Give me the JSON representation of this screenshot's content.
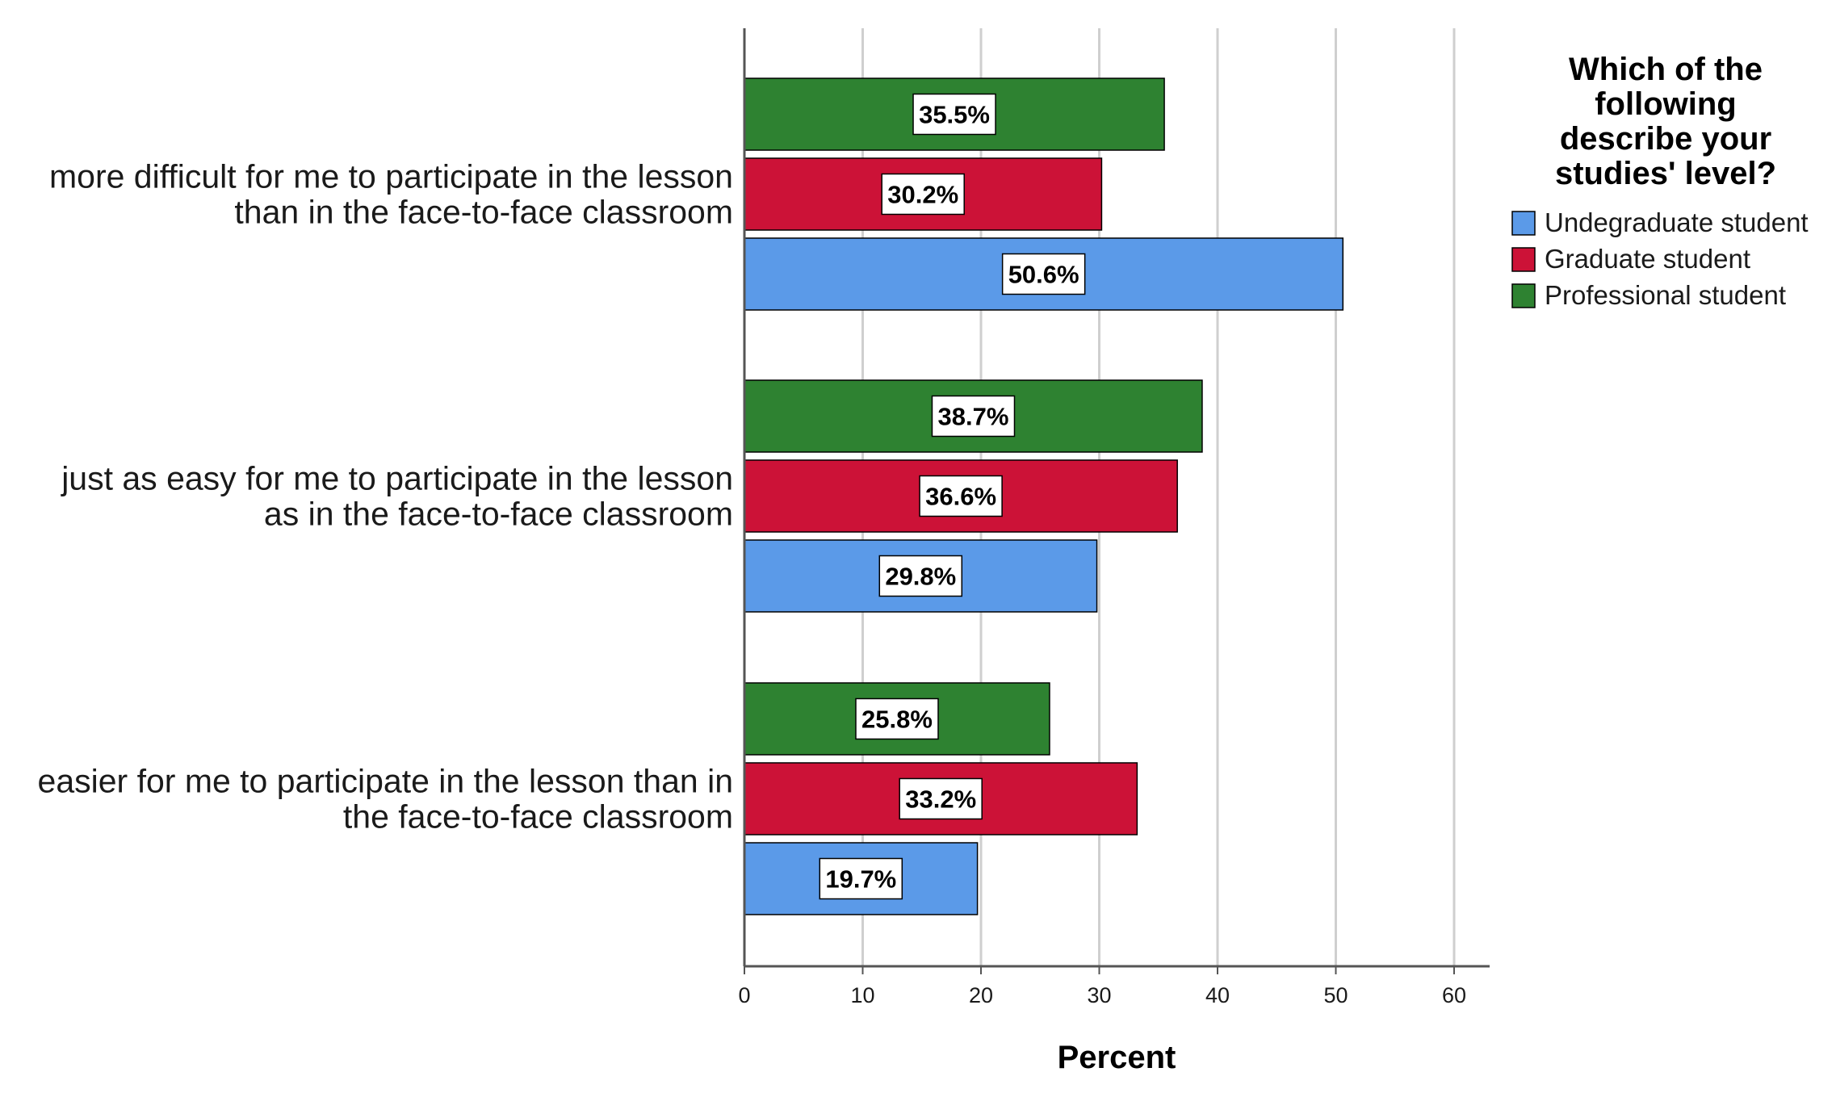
{
  "chart_data": {
    "type": "bar",
    "orientation": "horizontal",
    "categories": [
      [
        "more difficult for me to participate in the lesson",
        "than in the face-to-face classroom"
      ],
      [
        "just as easy for me to participate in the lesson",
        "as in the face-to-face classroom"
      ],
      [
        "easier for me to participate in the lesson than in",
        "the face-to-face classroom"
      ]
    ],
    "series": [
      {
        "name": "Professional student",
        "color": "#2e8231",
        "values": [
          35.5,
          38.7,
          25.8
        ],
        "labels": [
          "35.5%",
          "38.7%",
          "25.8%"
        ]
      },
      {
        "name": "Graduate student",
        "color": "#cc1237",
        "values": [
          30.2,
          36.6,
          33.2
        ],
        "labels": [
          "30.2%",
          "36.6%",
          "33.2%"
        ]
      },
      {
        "name": "Undegraduate student",
        "color": "#5b9ae8",
        "values": [
          50.6,
          29.8,
          19.7
        ],
        "labels": [
          "50.6%",
          "29.8%",
          "19.7%"
        ]
      }
    ],
    "legend": {
      "title": [
        "Which of the",
        "following",
        "describe your",
        "studies' level?"
      ],
      "items": [
        "Undegraduate student",
        "Graduate student",
        "Professional student"
      ],
      "colors": [
        "#5b9ae8",
        "#cc1237",
        "#2e8231"
      ],
      "placement": "top-right"
    },
    "xlabel": "Percent",
    "xlim": [
      0,
      63
    ],
    "xticks": [
      0,
      10,
      20,
      30,
      40,
      50,
      60
    ],
    "grid": true
  }
}
